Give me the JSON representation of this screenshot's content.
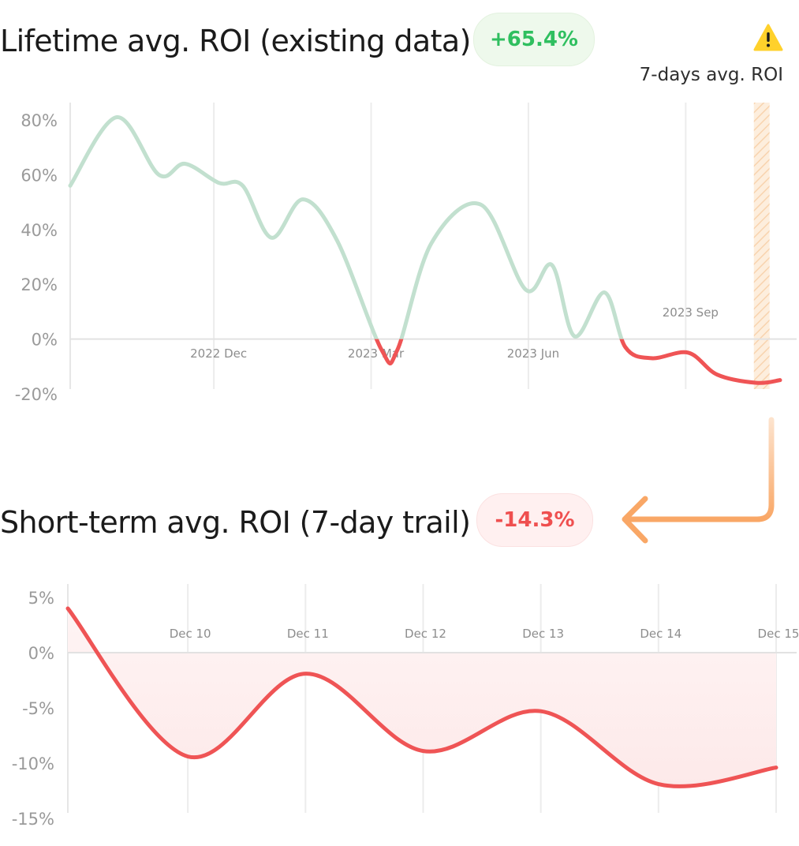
{
  "header": {
    "lifetime_title": "Lifetime avg. ROI (existing data)",
    "lifetime_badge": "+65.4%",
    "seven_day_note": "7-days avg. ROI",
    "short_title": "Short-term avg. ROI (7-day trail)",
    "short_badge": "-14.3%"
  },
  "icons": {
    "warning": "warning-triangle-icon",
    "connector": "arrow-left-icon"
  },
  "colors": {
    "positive": "#2fbf5f",
    "positive_line": "#c2e0cf",
    "negative": "#ef5455",
    "negative_fill": "#fde9e9",
    "highlight": "#f9a766"
  },
  "chart_data": [
    {
      "type": "line",
      "title": "Lifetime avg. ROI (existing data)",
      "ylim": [
        -20,
        85
      ],
      "y_ticks": [
        "80%",
        "60%",
        "40%",
        "20%",
        "0%",
        "-20%"
      ],
      "y_tick_values": [
        80,
        60,
        40,
        20,
        0,
        -20
      ],
      "x_ticks": [
        "2022 Dec",
        "2023 Mar",
        "2023 Jun",
        "2023 Sep"
      ],
      "x_tick_values": [
        1,
        4,
        7,
        10
      ],
      "xlim": [
        -1.74,
        11.8
      ],
      "highlight_range": [
        11.3,
        11.6
      ],
      "highlight_label": "7-days avg. ROI",
      "series": [
        {
          "x": [
            -1.74,
            -0.85,
            -0.05,
            0.45,
            1.1,
            1.55,
            2.1,
            2.7,
            3.35,
            4.2,
            4.5,
            5.15,
            6.1,
            6.95,
            7.45,
            7.88,
            8.45,
            8.85,
            9.35,
            10.05,
            10.6,
            11.35,
            11.8
          ],
          "y": [
            56,
            81,
            60,
            64,
            57,
            56,
            37,
            51,
            36,
            -4,
            -4,
            35,
            49,
            18,
            27,
            1,
            17,
            -3,
            -7,
            -5,
            -13,
            -16,
            -15
          ]
        }
      ]
    },
    {
      "type": "area",
      "title": "Short-term avg. ROI (7-day trail)",
      "ylim": [
        -15,
        5
      ],
      "y_ticks": [
        "5%",
        "0%",
        "-5%",
        "-10%",
        "-15%"
      ],
      "y_tick_values": [
        5,
        0,
        -5,
        -10,
        -15
      ],
      "x_ticks": [
        "Dec 10",
        "Dec 11",
        "Dec 12",
        "Dec 13",
        "Dec 14",
        "Dec 15"
      ],
      "x_tick_values": [
        10,
        11,
        12,
        13,
        14,
        15
      ],
      "xlim": [
        8.98,
        15
      ],
      "series": [
        {
          "x": [
            8.98,
            10.0,
            11.0,
            12.0,
            13.0,
            14.0,
            15.0
          ],
          "y": [
            4,
            -9.4,
            -1.9,
            -8.9,
            -5.3,
            -11.9,
            -10.4
          ]
        }
      ]
    }
  ]
}
